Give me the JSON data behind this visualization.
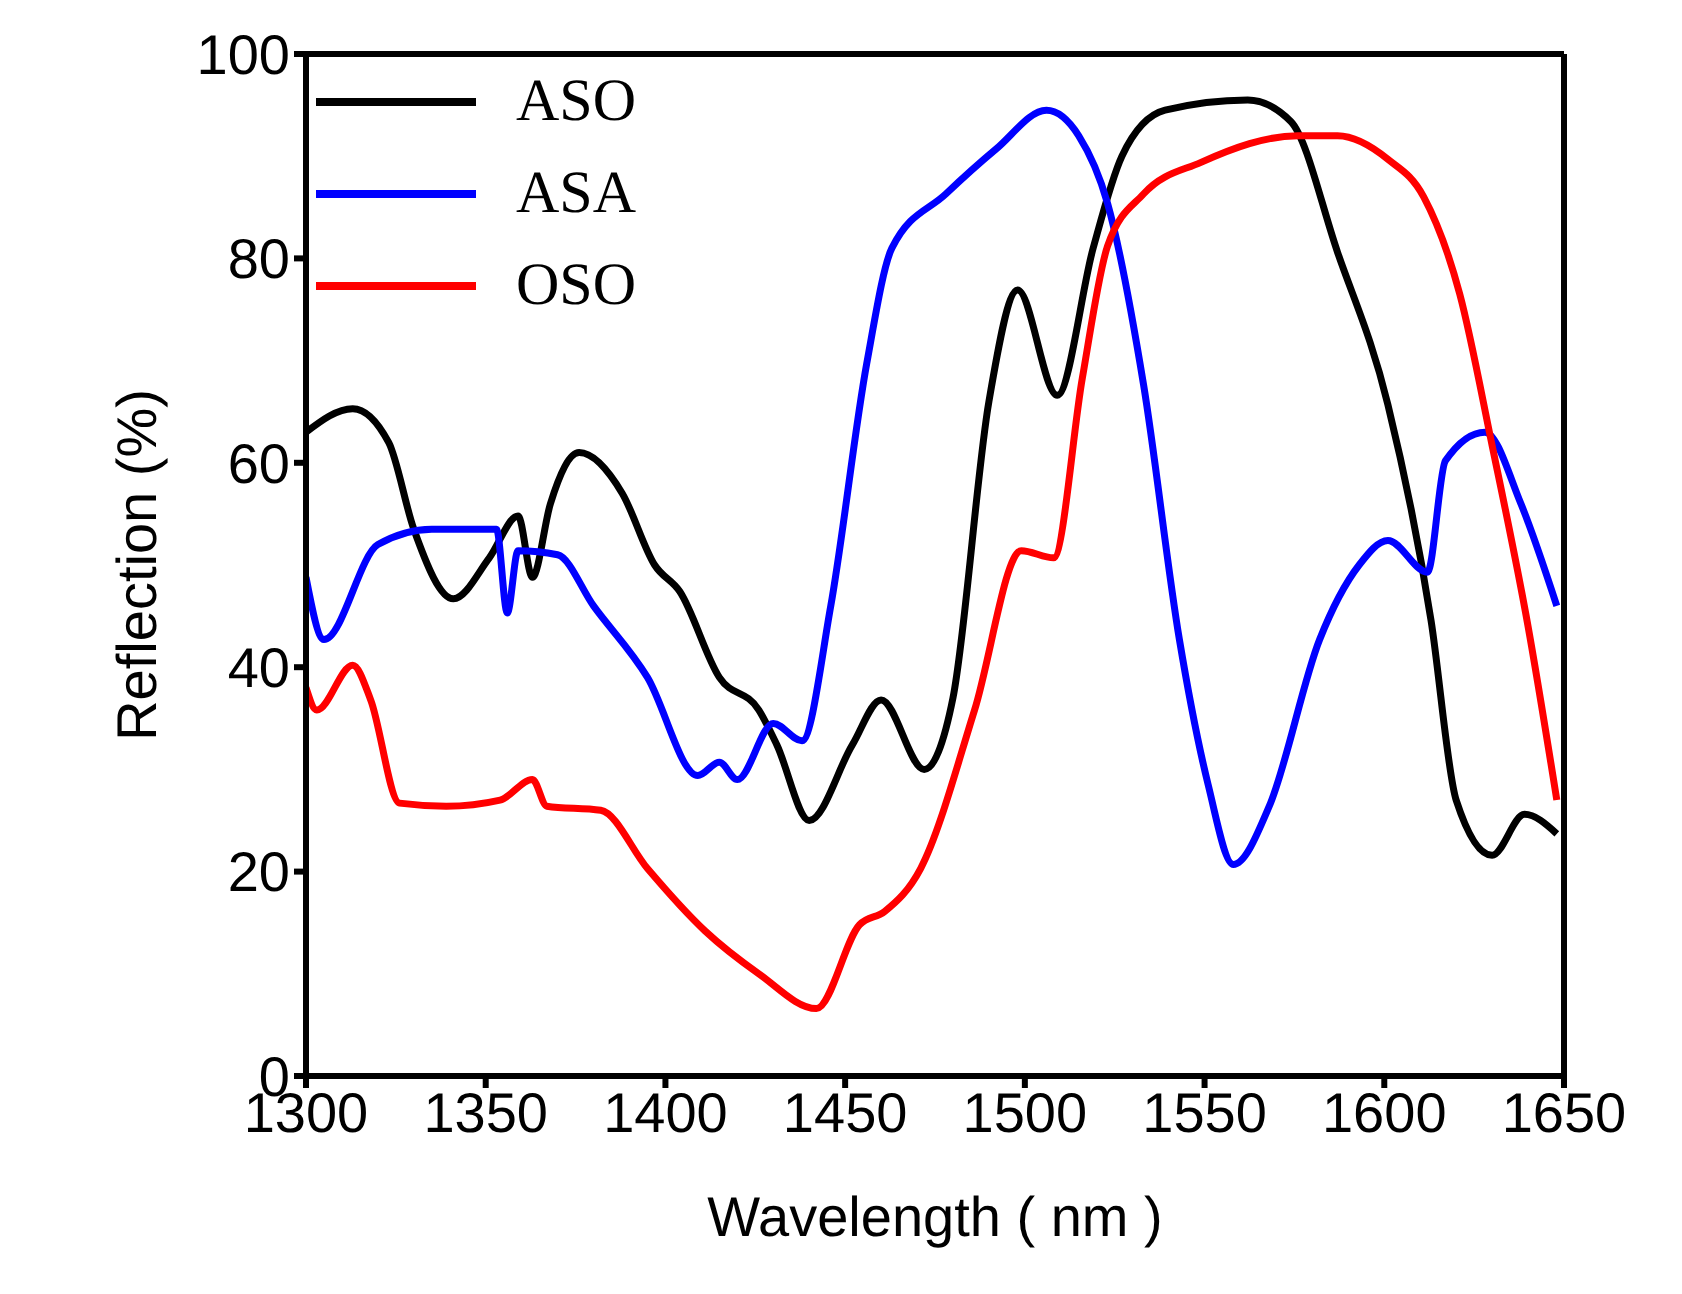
{
  "chart_data": {
    "type": "line",
    "xlabel": "Wavelength ( nm )",
    "ylabel": "Reflection (%)",
    "xlim": [
      1300,
      1650
    ],
    "ylim": [
      0,
      100
    ],
    "xticks": [
      1300,
      1350,
      1400,
      1450,
      1500,
      1550,
      1600,
      1650
    ],
    "yticks": [
      0,
      20,
      40,
      60,
      80,
      100
    ],
    "legend": "top left",
    "marker": "none",
    "line_style": "solid",
    "series": [
      {
        "name": "ASO",
        "color": "#000000",
        "x": [
          1300,
          1313,
          1323,
          1330,
          1341,
          1351,
          1359,
          1363,
          1368,
          1376,
          1388,
          1397,
          1404,
          1415,
          1426,
          1431,
          1440,
          1452,
          1460,
          1472,
          1480,
          1490,
          1498,
          1509,
          1519,
          1527,
          1539,
          1562,
          1574,
          1587,
          1601,
          1613,
          1620,
          1630,
          1639,
          1648
        ],
        "values": [
          63,
          65.3,
          62,
          53.5,
          46.7,
          50.7,
          54.8,
          48.8,
          56,
          61,
          57,
          50,
          47.4,
          39,
          35.8,
          32.4,
          25,
          32.4,
          36.8,
          30,
          37,
          66,
          76.9,
          66.6,
          81,
          90,
          94.5,
          95.5,
          93.4,
          80.6,
          65.7,
          44.6,
          27,
          21.6,
          25.6,
          23.7
        ]
      },
      {
        "name": "ASA",
        "color": "#0000ff",
        "x": [
          1300,
          1305,
          1320,
          1335,
          1353,
          1356,
          1359,
          1370,
          1380,
          1395,
          1409,
          1415,
          1420,
          1430,
          1438,
          1446,
          1456,
          1463,
          1478,
          1492,
          1506,
          1515,
          1523,
          1533,
          1543,
          1551,
          1558,
          1568,
          1582,
          1593,
          1601,
          1612,
          1617,
          1628,
          1638,
          1648
        ],
        "values": [
          48.8,
          42.7,
          52,
          53.5,
          53.5,
          45.3,
          51.4,
          51,
          46,
          39,
          29.4,
          30.7,
          29,
          34.5,
          32.8,
          46,
          69.7,
          81,
          86.3,
          90.7,
          94.5,
          92,
          85.4,
          67.7,
          42.7,
          28.5,
          20.7,
          26.4,
          42.7,
          50,
          52.4,
          49.3,
          60.2,
          63,
          56,
          46
        ]
      },
      {
        "name": "OSO",
        "color": "#ff0000",
        "x": [
          1300,
          1303,
          1313,
          1318,
          1326,
          1339,
          1354,
          1363,
          1367,
          1382,
          1395,
          1411,
          1426,
          1442,
          1454,
          1461,
          1471,
          1486,
          1499,
          1508,
          1516,
          1523,
          1533,
          1549,
          1576,
          1587,
          1601,
          1611,
          1621,
          1630,
          1640,
          1648
        ],
        "values": [
          38,
          35.8,
          40.2,
          36.8,
          26.7,
          26.4,
          27,
          29,
          26.4,
          26,
          20.3,
          14.2,
          10,
          6.6,
          14.8,
          16.1,
          20.3,
          35.8,
          51.4,
          50.7,
          68.3,
          81.2,
          86.3,
          89.4,
          92,
          92,
          89.7,
          86,
          76.5,
          61.7,
          44,
          27
        ]
      }
    ]
  }
}
